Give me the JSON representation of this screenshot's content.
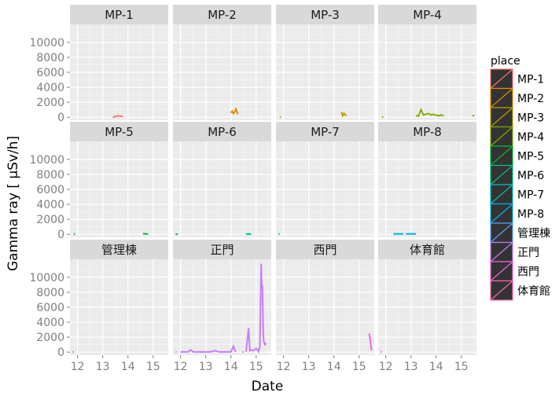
{
  "chart_data": {
    "type": "facet-line",
    "xlabel": "Date",
    "ylabel": "Gamma ray [ μSv/h]",
    "x_ticks": [
      12,
      13,
      14,
      15
    ],
    "x_tick_labels": [
      "12",
      "13",
      "14",
      "15"
    ],
    "xlim": [
      11.7,
      15.6
    ],
    "y_ticks": [
      0,
      2000,
      4000,
      6000,
      8000,
      10000
    ],
    "y_tick_labels": [
      "0",
      "2000",
      "4000",
      "6000",
      "8000",
      "10000"
    ],
    "ylim": [
      -400,
      12400
    ],
    "grid": true,
    "legend": {
      "title": "place",
      "position": "right",
      "entries": [
        "MP-1",
        "MP-2",
        "MP-3",
        "MP-4",
        "MP-5",
        "MP-6",
        "MP-7",
        "MP-8",
        "管理棟",
        "正門",
        "西門",
        "体育館"
      ]
    },
    "facets": [
      {
        "name": "MP-1",
        "color": "#F8766D",
        "segments": [
          [
            [
              13.4,
              10
            ],
            [
              13.5,
              80
            ],
            [
              13.6,
              200
            ],
            [
              13.7,
              150
            ],
            [
              13.8,
              90
            ]
          ]
        ]
      },
      {
        "name": "MP-2",
        "color": "#DE8C00",
        "segments": [
          [
            [
              14.0,
              600
            ],
            [
              14.05,
              800
            ],
            [
              14.1,
              500
            ],
            [
              14.15,
              700
            ],
            [
              14.2,
              1100
            ],
            [
              14.25,
              600
            ],
            [
              14.28,
              400
            ]
          ]
        ]
      },
      {
        "name": "MP-3",
        "color": "#B79F00",
        "segments": [
          [
            [
              11.85,
              20
            ],
            [
              11.9,
              10
            ]
          ],
          [
            [
              14.3,
              700
            ],
            [
              14.35,
              200
            ],
            [
              14.4,
              500
            ],
            [
              14.45,
              300
            ],
            [
              14.5,
              200
            ]
          ]
        ]
      },
      {
        "name": "MP-4",
        "color": "#7CAE00",
        "segments": [
          [
            [
              11.85,
              20
            ],
            [
              11.9,
              5
            ]
          ],
          [
            [
              13.2,
              200
            ],
            [
              13.3,
              150
            ],
            [
              13.4,
              1000
            ],
            [
              13.5,
              300
            ],
            [
              13.7,
              500
            ],
            [
              13.8,
              300
            ],
            [
              13.9,
              400
            ],
            [
              14.0,
              250
            ],
            [
              14.1,
              200
            ],
            [
              14.2,
              300
            ],
            [
              14.3,
              150
            ]
          ],
          [
            [
              15.45,
              100
            ],
            [
              15.5,
              300
            ]
          ]
        ]
      },
      {
        "name": "MP-5",
        "color": "#00BA38",
        "segments": [
          [
            [
              11.85,
              50
            ],
            [
              11.9,
              10
            ]
          ],
          [
            [
              14.6,
              80
            ],
            [
              14.7,
              60
            ],
            [
              14.8,
              50
            ]
          ]
        ]
      },
      {
        "name": "MP-6",
        "color": "#00C08B",
        "segments": [
          [
            [
              11.8,
              30
            ],
            [
              11.9,
              20
            ]
          ],
          [
            [
              14.6,
              30
            ],
            [
              14.7,
              50
            ],
            [
              14.8,
              20
            ]
          ]
        ]
      },
      {
        "name": "MP-7",
        "color": "#00BFC4",
        "segments": [
          [
            [
              11.8,
              40
            ],
            [
              11.85,
              30
            ]
          ]
        ]
      },
      {
        "name": "MP-8",
        "color": "#00B4F0",
        "segments": [
          [
            [
              12.3,
              50
            ],
            [
              12.5,
              60
            ],
            [
              12.7,
              40
            ]
          ],
          [
            [
              12.8,
              50
            ],
            [
              13.0,
              60
            ],
            [
              13.2,
              50
            ]
          ]
        ]
      },
      {
        "name": "管理棟",
        "color": "#619CFF",
        "segments": [
          [
            [
              11.8,
              30
            ],
            [
              11.85,
              20
            ]
          ]
        ]
      },
      {
        "name": "正門",
        "color": "#C77CFF",
        "segments": [
          [
            [
              11.8,
              50
            ],
            [
              11.85,
              20
            ]
          ],
          [
            [
              12.0,
              30
            ],
            [
              12.3,
              40
            ],
            [
              12.4,
              300
            ],
            [
              12.5,
              50
            ],
            [
              12.7,
              30
            ],
            [
              12.8,
              40
            ],
            [
              13.0,
              30
            ],
            [
              13.2,
              50
            ],
            [
              13.4,
              200
            ],
            [
              13.5,
              40
            ],
            [
              13.8,
              30
            ],
            [
              14.0,
              50
            ],
            [
              14.1,
              800
            ],
            [
              14.15,
              300
            ],
            [
              14.2,
              50
            ]
          ],
          [
            [
              14.45,
              40
            ],
            [
              14.5,
              30
            ]
          ],
          [
            [
              14.6,
              50
            ],
            [
              14.7,
              3200
            ],
            [
              14.75,
              200
            ],
            [
              14.8,
              300
            ],
            [
              14.9,
              200
            ],
            [
              15.0,
              500
            ],
            [
              15.1,
              100
            ],
            [
              15.15,
              800
            ],
            [
              15.2,
              11800
            ],
            [
              15.22,
              9000
            ],
            [
              15.25,
              8800
            ],
            [
              15.28,
              3000
            ],
            [
              15.3,
              1500
            ],
            [
              15.35,
              1000
            ],
            [
              15.4,
              1200
            ]
          ]
        ]
      },
      {
        "name": "西門",
        "color": "#F564E3",
        "segments": [
          [
            [
              15.4,
              2500
            ],
            [
              15.45,
              1500
            ],
            [
              15.48,
              600
            ],
            [
              15.5,
              200
            ]
          ]
        ]
      },
      {
        "name": "体育館",
        "color": "#FF64B0",
        "segments": [
          [
            [
              11.8,
              50
            ],
            [
              11.85,
              30
            ]
          ]
        ]
      }
    ]
  }
}
